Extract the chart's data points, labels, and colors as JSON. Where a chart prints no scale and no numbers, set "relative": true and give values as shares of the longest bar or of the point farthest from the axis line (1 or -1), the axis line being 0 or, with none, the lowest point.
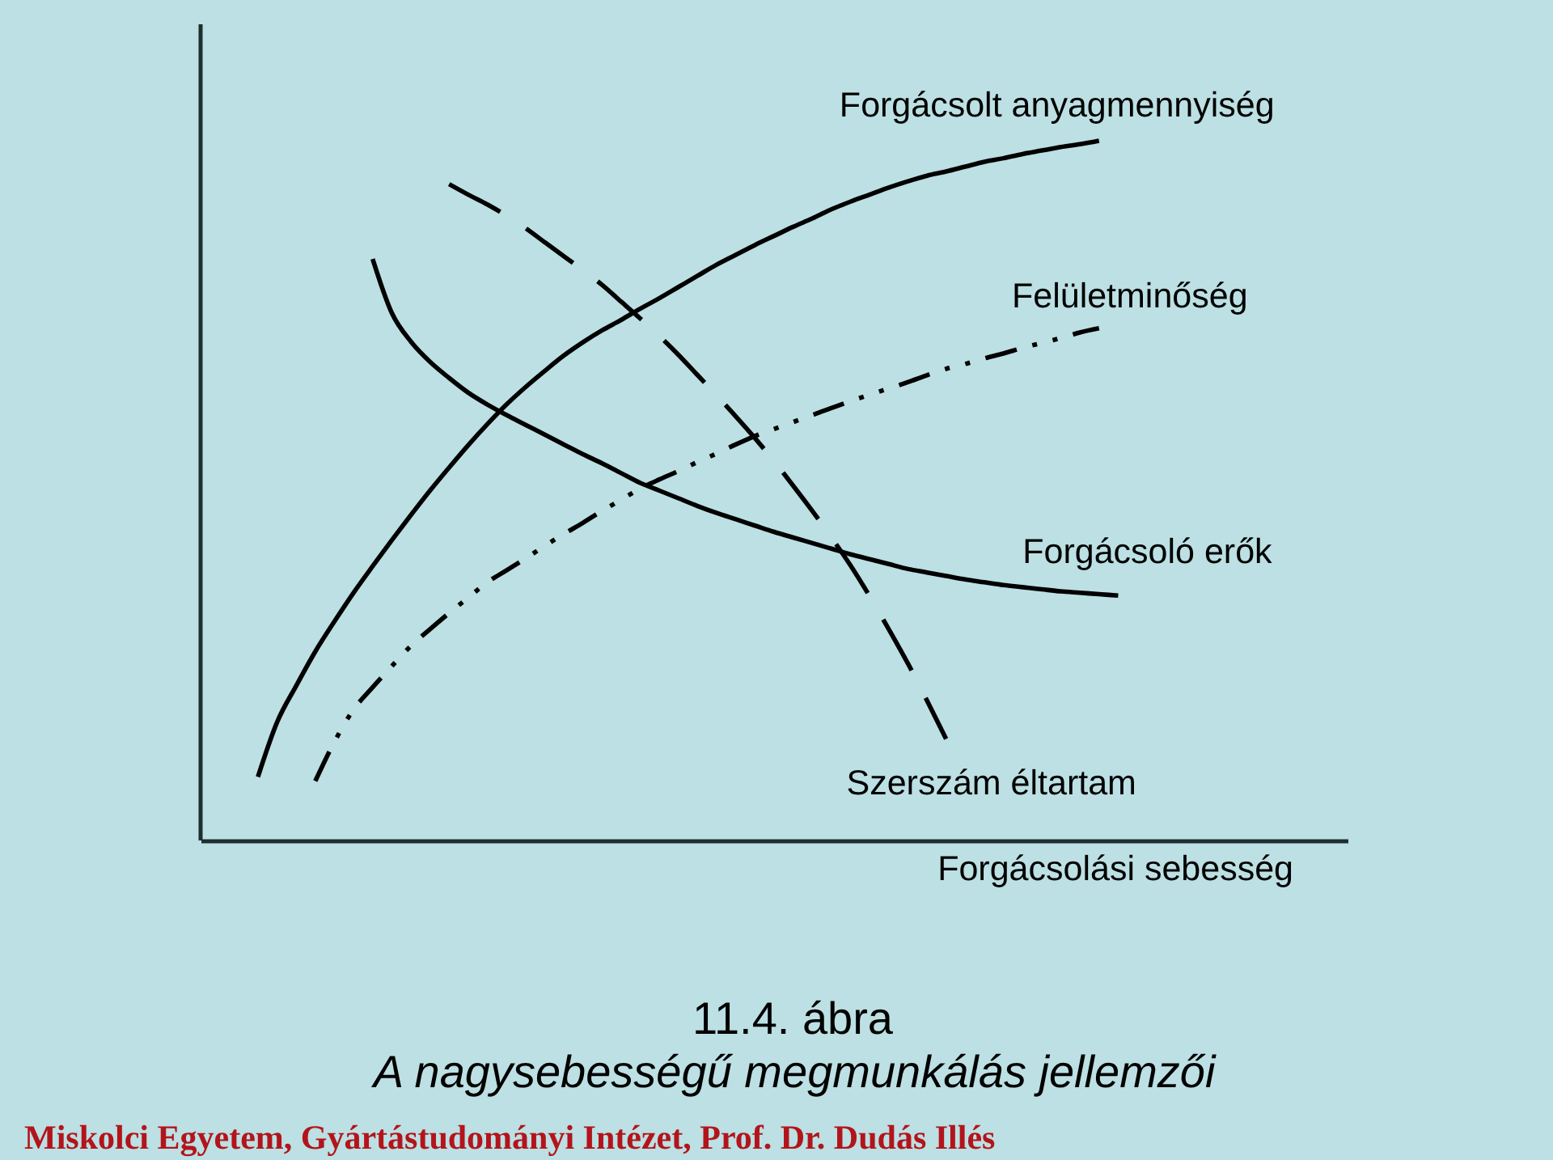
{
  "chart_data": {
    "type": "line",
    "title": "11.4. ábra",
    "subtitle": "A nagysebességű megmunkálás jellemzői",
    "xlabel": "Forgácsolási sebesség",
    "annotations": [
      "Miskolci Egyetem, Gyártástudományi Intézet, Prof. Dr. Dudás Illés"
    ],
    "relative": true,
    "categories": [
      null,
      null,
      null,
      null,
      null,
      null,
      null,
      null,
      null,
      null,
      null,
      null,
      null,
      null,
      null,
      null,
      null,
      null,
      null,
      null,
      null,
      null,
      null,
      null,
      null,
      null,
      null,
      null,
      null,
      null,
      null,
      null,
      null,
      null,
      null,
      null,
      null,
      null,
      null,
      null,
      null,
      null,
      null,
      null,
      null,
      null,
      null,
      null,
      null,
      null,
      null,
      null,
      null,
      null,
      null,
      null,
      null,
      null,
      null,
      null,
      null
    ],
    "series": [
      {
        "name": "Forgácsolt anyagmennyiség",
        "color": "#000000",
        "line_style": "solid",
        "values": [
          null,
          null,
          null,
          0.091,
          0.169,
          0.221,
          0.27,
          0.313,
          0.354,
          0.392,
          0.429,
          0.465,
          0.5,
          0.533,
          0.565,
          0.595,
          0.623,
          0.648,
          0.671,
          0.693,
          0.712,
          0.729,
          0.744,
          0.76,
          0.775,
          0.791,
          0.807,
          0.823,
          0.837,
          0.851,
          0.864,
          0.877,
          0.889,
          0.902,
          0.913,
          0.923,
          0.933,
          0.942,
          0.95,
          0.956,
          0.963,
          0.97,
          0.975,
          0.981,
          0.986,
          0.991,
          0.995,
          1,
          null,
          null,
          null,
          null,
          null,
          null,
          null,
          null,
          null,
          null,
          null,
          null,
          null
        ]
      },
      {
        "name": "Felületminőség",
        "color": "#000000",
        "line_style": "dashdot",
        "values": [
          null,
          null,
          null,
          null,
          null,
          null,
          0.085,
          0.141,
          0.187,
          0.219,
          0.249,
          0.278,
          0.302,
          0.325,
          0.347,
          0.369,
          0.386,
          0.403,
          0.421,
          0.438,
          0.454,
          0.471,
          0.487,
          0.503,
          0.516,
          0.528,
          0.541,
          0.553,
          0.566,
          0.578,
          0.588,
          0.598,
          0.608,
          0.618,
          0.628,
          0.637,
          0.646,
          0.655,
          0.665,
          0.674,
          0.681,
          0.689,
          0.696,
          0.704,
          0.711,
          0.718,
          0.726,
          0.732,
          null,
          null,
          null,
          null,
          null,
          null,
          null,
          null,
          null,
          null,
          null,
          null,
          null
        ]
      },
      {
        "name": "Forgácsoló erők",
        "color": "#000000",
        "line_style": "solid",
        "values": [
          null,
          null,
          null,
          null,
          null,
          null,
          null,
          null,
          null,
          0.831,
          0.754,
          0.713,
          0.684,
          0.661,
          0.64,
          0.623,
          0.608,
          0.594,
          0.58,
          0.566,
          0.552,
          0.539,
          0.525,
          0.511,
          0.5,
          0.489,
          0.478,
          0.468,
          0.459,
          0.45,
          0.441,
          0.433,
          0.425,
          0.417,
          0.409,
          0.402,
          0.395,
          0.388,
          0.383,
          0.378,
          0.373,
          0.369,
          0.365,
          0.362,
          0.359,
          0.356,
          0.354,
          0.352,
          0.35,
          null,
          null,
          null,
          null,
          null,
          null,
          null,
          null,
          null,
          null,
          null,
          null
        ]
      },
      {
        "name": "Szerszám éltartam",
        "color": "#000000",
        "line_style": "dashed",
        "values": [
          null,
          null,
          null,
          null,
          null,
          null,
          null,
          null,
          null,
          null,
          null,
          null,
          null,
          0.938,
          0.923,
          0.909,
          0.893,
          0.875,
          0.855,
          0.835,
          0.815,
          0.794,
          0.77,
          0.746,
          0.721,
          0.694,
          0.665,
          0.636,
          0.606,
          0.575,
          0.542,
          0.507,
          0.471,
          0.433,
          0.393,
          0.349,
          0.302,
          0.253,
          0.2,
          0.145,
          null,
          null,
          null,
          null,
          null,
          null,
          null,
          null,
          null,
          null,
          null,
          null,
          null,
          null,
          null,
          null,
          null,
          null,
          null,
          null,
          null
        ]
      }
    ]
  }
}
